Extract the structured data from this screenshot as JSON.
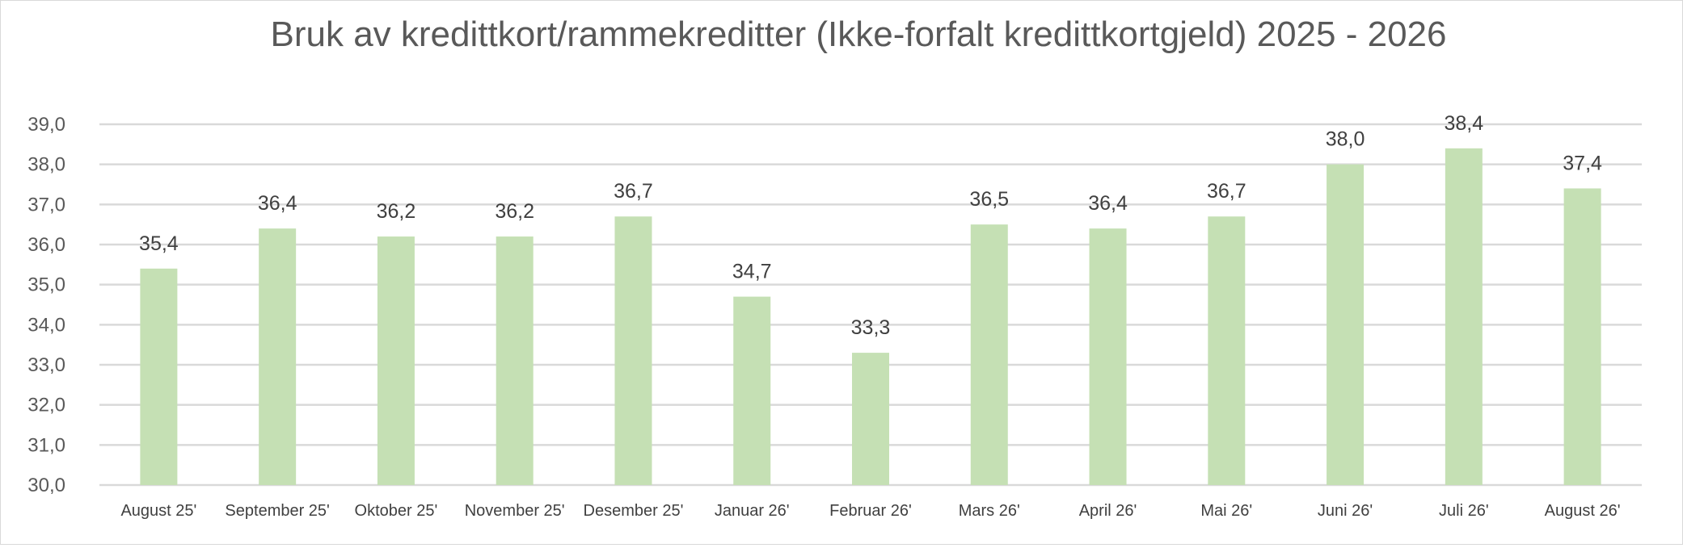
{
  "chart_data": {
    "type": "bar",
    "title": "Bruk av kredittkort/rammekreditter (Ikke-forfalt kredittkortgjeld) 2025 - 2026",
    "xlabel": "",
    "ylabel": "",
    "categories": [
      "August 25'",
      "September 25'",
      "Oktober 25'",
      "November 25'",
      "Desember 25'",
      "Januar 26'",
      "Februar 26'",
      "Mars 26'",
      "April 26'",
      "Mai 26'",
      "Juni 26'",
      "Juli 26'",
      "August 26'"
    ],
    "values": [
      35.4,
      36.4,
      36.2,
      36.2,
      36.7,
      34.7,
      33.3,
      36.5,
      36.4,
      36.7,
      38.0,
      38.4,
      37.4
    ],
    "value_labels": [
      "35,4",
      "36,4",
      "36,2",
      "36,2",
      "36,7",
      "34,7",
      "33,3",
      "36,5",
      "36,4",
      "36,7",
      "38,0",
      "38,4",
      "37,4"
    ],
    "ylim": [
      30,
      39
    ],
    "yticks": [
      30,
      31,
      32,
      33,
      34,
      35,
      36,
      37,
      38,
      39
    ],
    "ytick_labels": [
      "30,0",
      "31,0",
      "32,0",
      "33,0",
      "34,0",
      "35,0",
      "36,0",
      "37,0",
      "38,0",
      "39,0"
    ],
    "grid": true,
    "legend": "none",
    "bar_color": "#c5e0b4",
    "grid_color": "#d9d9d9"
  }
}
